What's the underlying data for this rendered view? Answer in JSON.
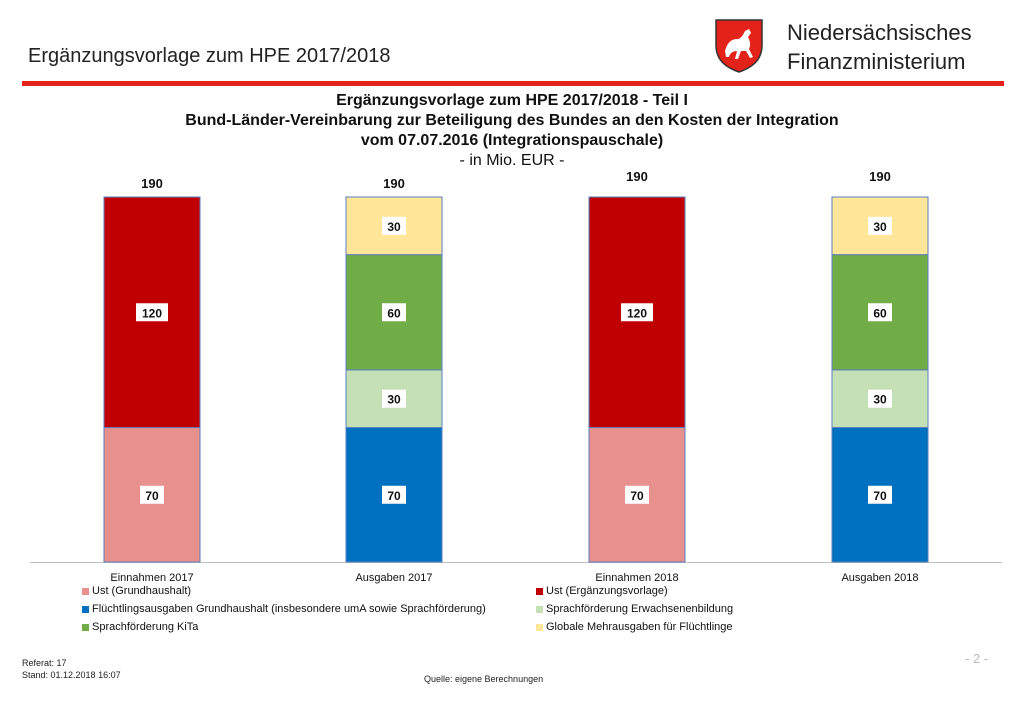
{
  "header": {
    "title": "Ergänzungsvorlage zum HPE 2017/2018"
  },
  "ministry": {
    "line1": "Niedersächsisches",
    "line2": "Finanzministerium"
  },
  "logo": {
    "icon": "lower-saxony-horse-crest-icon",
    "color": "#e32219"
  },
  "footer": {
    "referat": "Referat: 17",
    "stand": "Stand: 01.12.2018 16:07",
    "page": "- 2 -",
    "source": "Quelle: eigene Berechnungen"
  },
  "chart_data": {
    "type": "bar",
    "stacked": true,
    "title": "Ergänzungsvorlage zum HPE 2017/2018 - Teil I",
    "subtitle_lines": [
      "Bund-Länder-Vereinbarung zur Beteiligung des Bundes an den Kosten der Integration",
      "vom 07.07.2016 (Integrationspauschale)"
    ],
    "unit": "- in Mio. EUR -",
    "ylim": [
      0,
      190
    ],
    "categories": [
      "Einnahmen 2017",
      "Ausgaben 2017",
      "Einnahmen 2018",
      "Ausgaben 2018"
    ],
    "totals": [
      190,
      190,
      190,
      190
    ],
    "series": [
      {
        "name": "Ust (Grundhaushalt)",
        "color": "#e8908d",
        "values": [
          70,
          0,
          70,
          0
        ]
      },
      {
        "name": "Ust (Ergänzungsvorlage)",
        "color": "#c00000",
        "values": [
          120,
          0,
          120,
          0
        ]
      },
      {
        "name": "Flüchtlingsausgaben Grundhaushalt (insbesondere umA sowie Sprachförderung)",
        "color": "#0070c0",
        "values": [
          0,
          70,
          0,
          70
        ]
      },
      {
        "name": "Sprachförderung Erwachsenenbildung",
        "color": "#c5e0b4",
        "values": [
          0,
          30,
          0,
          30
        ]
      },
      {
        "name": "Sprachförderung KiTa",
        "color": "#70ad47",
        "values": [
          0,
          60,
          0,
          60
        ]
      },
      {
        "name": "Globale Mehrausgaben für Flüchtlinge",
        "color": "#ffe699",
        "values": [
          0,
          30,
          0,
          30
        ]
      }
    ],
    "legend_position": "bottom"
  }
}
